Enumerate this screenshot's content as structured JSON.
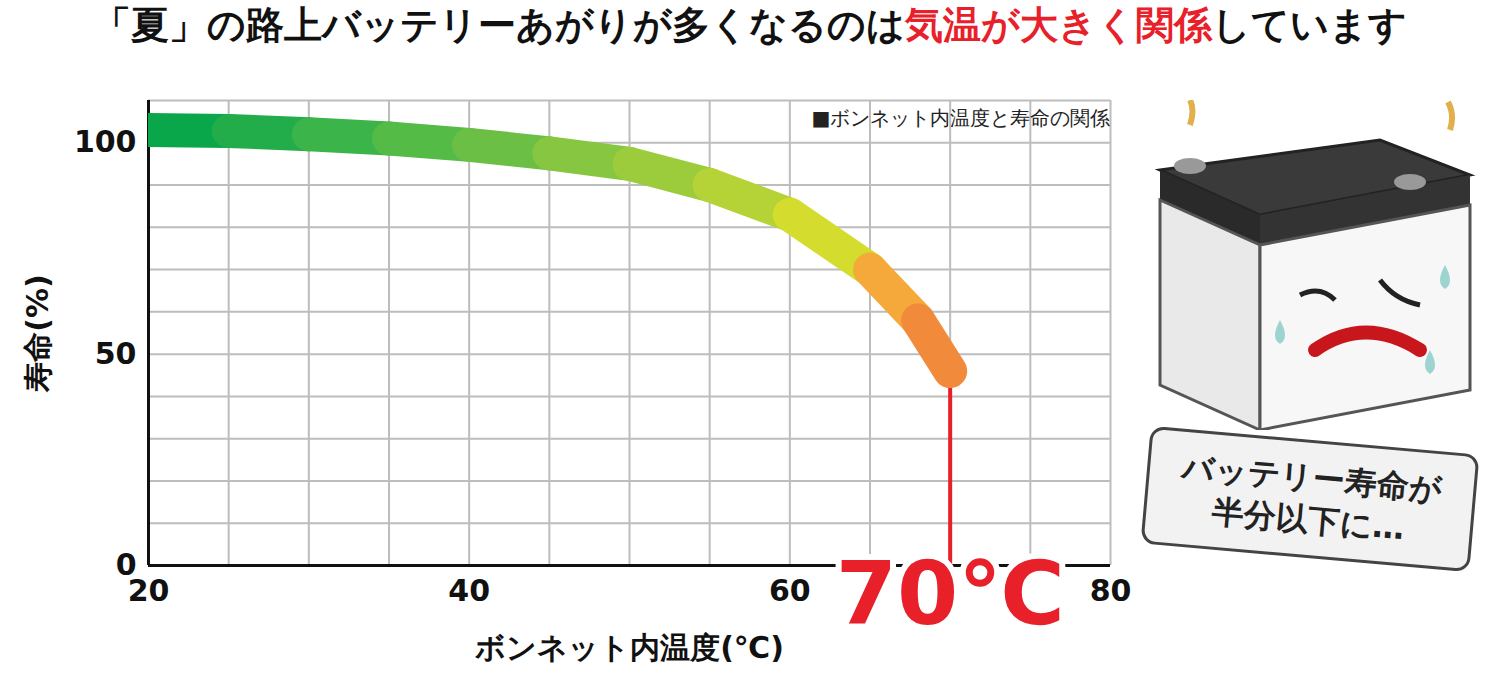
{
  "chart_data": {
    "type": "line",
    "title": "「夏」の路上バッテリーあがりが多くなるのは気温が大きく関係しています",
    "title_highlight": "気温が大きく関係",
    "subtitle": "■ボンネット内温度と寿命の関係",
    "x_label": "ボンネット内温度(℃)",
    "y_label": "寿命(%)",
    "x": [
      20,
      25,
      30,
      35,
      40,
      45,
      50,
      55,
      60,
      65,
      68,
      70
    ],
    "values": [
      103,
      102.8,
      102,
      101,
      99.5,
      97.5,
      95,
      90,
      83,
      70,
      58,
      46
    ],
    "colors": [
      "#0aa64a",
      "#22ac4a",
      "#3bb54a",
      "#55bb47",
      "#6cbf45",
      "#86c640",
      "#9ccc3c",
      "#b5d336",
      "#d4dc2e",
      "#f6a93b",
      "#f28a3c",
      "#ee6a3a"
    ],
    "xlim": [
      20,
      80
    ],
    "ylim": [
      0,
      110
    ],
    "xticks": [
      20,
      40,
      60,
      80
    ],
    "yticks": [
      0,
      50,
      100
    ],
    "grid": true,
    "annotations": [
      {
        "text": "70℃",
        "x": 70,
        "color": "#e8202a"
      }
    ],
    "callout": [
      "バッテリー寿命が",
      "半分以下に…"
    ]
  }
}
